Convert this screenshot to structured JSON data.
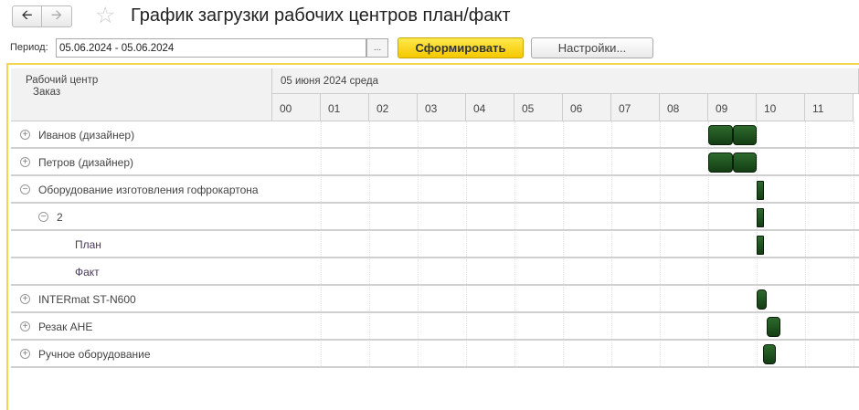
{
  "header": {
    "title": "График загрузки рабочих центров план/факт",
    "back_icon": "arrow-left",
    "forward_icon": "arrow-right",
    "favorite_icon": "star"
  },
  "toolbar": {
    "period_label": "Период:",
    "period_value": "05.06.2024 - 05.06.2024",
    "select_period": "...",
    "generate": "Сформировать",
    "settings": "Настройки..."
  },
  "table": {
    "col_header_1": "Рабочий центр",
    "col_header_2": "Заказ",
    "date_header": "05 июня 2024 среда",
    "hours": [
      "00",
      "01",
      "02",
      "03",
      "04",
      "05",
      "06",
      "07",
      "08",
      "09",
      "10",
      "11"
    ],
    "bar_color": "#1f4f1f",
    "rows": [
      {
        "label": "Иванов (дизайнер)",
        "level": 0,
        "toggle": "expand",
        "bars": [
          [
            9.0,
            9.5
          ],
          [
            9.5,
            10.0
          ]
        ]
      },
      {
        "label": "Петров (дизайнер)",
        "level": 0,
        "toggle": "expand",
        "bars": [
          [
            9.0,
            9.5
          ],
          [
            9.5,
            10.0
          ]
        ]
      },
      {
        "label": "Оборудование изготовления гофрокартона",
        "level": 0,
        "toggle": "collapse",
        "bars": [
          [
            10.0,
            10.15
          ]
        ]
      },
      {
        "label": "2",
        "level": 1,
        "toggle": "collapse",
        "bars": [
          [
            10.0,
            10.15
          ]
        ]
      },
      {
        "label": "План",
        "level": 2,
        "toggle": "",
        "bars": [
          [
            10.0,
            10.15
          ]
        ]
      },
      {
        "label": "Факт",
        "level": 2,
        "toggle": "",
        "bars": []
      },
      {
        "label": "INTERmat ST-N600",
        "level": 0,
        "toggle": "expand",
        "bars": [
          [
            10.0,
            10.2
          ]
        ]
      },
      {
        "label": "Резак АНЕ",
        "level": 0,
        "toggle": "expand",
        "bars": [
          [
            10.2,
            10.5
          ]
        ]
      },
      {
        "label": "Ручное оборудование",
        "level": 0,
        "toggle": "expand",
        "bars": [
          [
            10.13,
            10.4
          ]
        ]
      }
    ]
  }
}
